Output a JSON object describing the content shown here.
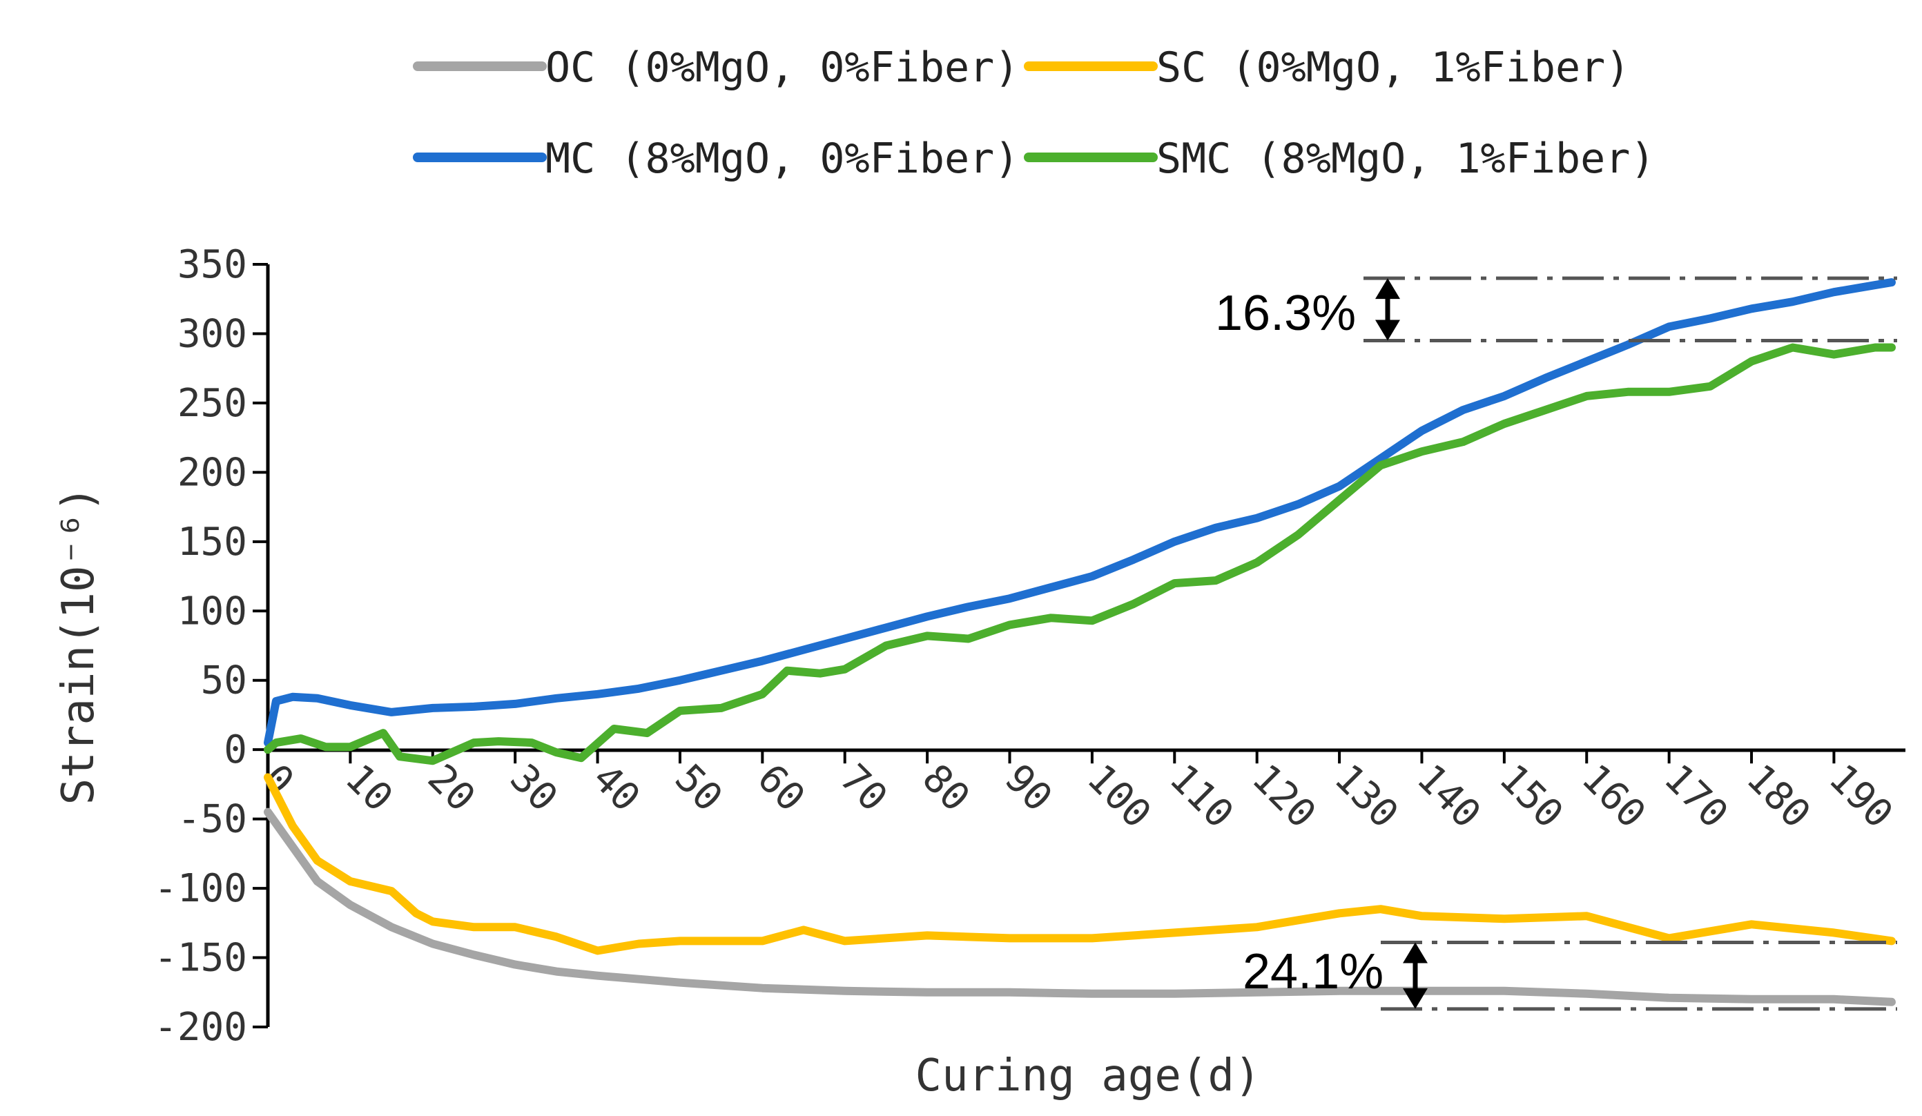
{
  "chart_data": {
    "type": "line",
    "title": "",
    "xlabel": "Curing age(d)",
    "ylabel": "Strain(10⁻⁶)",
    "xlim": [
      0,
      197
    ],
    "ylim": [
      -200,
      350
    ],
    "xticks": [
      0,
      10,
      20,
      30,
      40,
      50,
      60,
      70,
      80,
      90,
      100,
      110,
      120,
      130,
      140,
      150,
      160,
      170,
      180,
      190
    ],
    "yticks": [
      -200,
      -150,
      -100,
      -50,
      0,
      50,
      100,
      150,
      200,
      250,
      300,
      350
    ],
    "legend_position": "top",
    "series": [
      {
        "name": "OC (0%MgO, 0%Fiber)",
        "color": "#A5A5A5",
        "x": [
          0,
          3,
          6,
          10,
          15,
          20,
          25,
          30,
          35,
          40,
          50,
          60,
          70,
          80,
          90,
          100,
          110,
          120,
          130,
          140,
          150,
          160,
          170,
          180,
          190,
          197
        ],
        "y": [
          -45,
          -70,
          -95,
          -112,
          -128,
          -140,
          -148,
          -155,
          -160,
          -163,
          -168,
          -172,
          -174,
          -175,
          -175,
          -176,
          -176,
          -175,
          -174,
          -174,
          -174,
          -176,
          -179,
          -180,
          -180,
          -182
        ]
      },
      {
        "name": "SC (0%MgO, 1%Fiber)",
        "color": "#FFC000",
        "x": [
          0,
          3,
          6,
          10,
          15,
          18,
          20,
          25,
          30,
          35,
          40,
          45,
          50,
          60,
          65,
          70,
          80,
          90,
          100,
          110,
          120,
          130,
          135,
          140,
          150,
          160,
          170,
          180,
          190,
          197
        ],
        "y": [
          -20,
          -55,
          -80,
          -95,
          -102,
          -118,
          -124,
          -128,
          -128,
          -135,
          -145,
          -140,
          -138,
          -138,
          -130,
          -138,
          -134,
          -136,
          -136,
          -132,
          -128,
          -118,
          -115,
          -120,
          -122,
          -120,
          -136,
          -126,
          -132,
          -138
        ]
      },
      {
        "name": "MC (8%MgO, 0%Fiber)",
        "color": "#1F6FD0",
        "x": [
          0,
          1,
          3,
          6,
          10,
          15,
          20,
          25,
          30,
          35,
          40,
          45,
          50,
          55,
          60,
          65,
          70,
          75,
          80,
          85,
          90,
          95,
          100,
          105,
          110,
          115,
          120,
          125,
          130,
          135,
          140,
          145,
          150,
          155,
          160,
          165,
          170,
          175,
          180,
          185,
          190,
          195,
          197
        ],
        "y": [
          5,
          35,
          38,
          37,
          32,
          27,
          30,
          31,
          33,
          37,
          40,
          44,
          50,
          57,
          64,
          72,
          80,
          88,
          96,
          103,
          109,
          117,
          125,
          137,
          150,
          160,
          167,
          177,
          190,
          210,
          230,
          245,
          255,
          268,
          280,
          292,
          305,
          311,
          318,
          323,
          330,
          335,
          337
        ]
      },
      {
        "name": "SMC (8%MgO, 1%Fiber)",
        "color": "#4CAF2D",
        "x": [
          0,
          1,
          4,
          7,
          10,
          14,
          16,
          20,
          25,
          28,
          32,
          35,
          38,
          42,
          46,
          50,
          55,
          60,
          63,
          67,
          70,
          75,
          80,
          85,
          90,
          95,
          100,
          105,
          110,
          115,
          120,
          125,
          130,
          135,
          140,
          145,
          150,
          155,
          160,
          165,
          170,
          175,
          180,
          185,
          190,
          195,
          197
        ],
        "y": [
          0,
          5,
          8,
          2,
          2,
          12,
          -5,
          -8,
          5,
          6,
          5,
          -2,
          -6,
          15,
          12,
          28,
          30,
          40,
          57,
          55,
          58,
          75,
          82,
          80,
          90,
          95,
          93,
          105,
          120,
          122,
          135,
          155,
          180,
          205,
          215,
          222,
          235,
          245,
          255,
          258,
          258,
          262,
          280,
          290,
          285,
          290,
          290
        ]
      }
    ],
    "annotations": [
      {
        "text": "16.3%",
        "between_series": [
          "MC (8%MgO, 0%Fiber)",
          "SMC (8%MgO, 1%Fiber)"
        ],
        "at_values": [
          340,
          295
        ]
      },
      {
        "text": "24.1%",
        "between_series": [
          "SC (0%MgO, 1%Fiber)",
          "OC (0%MgO, 0%Fiber)"
        ],
        "at_values": [
          -139,
          -187
        ]
      }
    ]
  }
}
